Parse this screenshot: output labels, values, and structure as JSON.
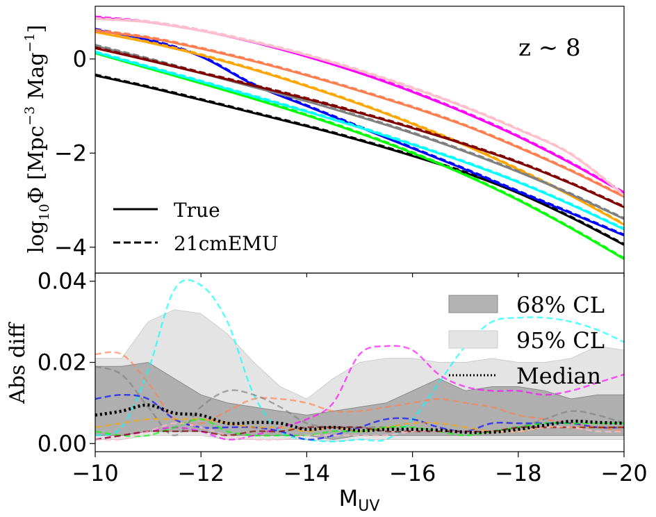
{
  "chart_data": [
    {
      "panel": "top",
      "type": "line",
      "annotation": "z ∼ 8",
      "ylabel_main": "log",
      "ylabel_sub": "10",
      "ylabel_rest": "Φ [Mpc",
      "ylabel_exp1": "−3",
      "ylabel_mid": " Mag",
      "ylabel_exp2": "−1",
      "ylabel_end": "]",
      "xlim": [
        -10,
        -20
      ],
      "ylim": [
        -4.55,
        1.12
      ],
      "yticks": [
        0,
        -2,
        -4
      ],
      "ytick_labels": [
        "0",
        "−2",
        "−4"
      ],
      "grid": false,
      "legend_position": "lower-left",
      "legend": [
        {
          "label": "True",
          "style": "solid"
        },
        {
          "label": "21cmEMU",
          "style": "dashed"
        }
      ],
      "x": [
        -10,
        -11,
        -12,
        -13,
        -14,
        -15,
        -16,
        -17,
        -18,
        -19,
        -20
      ],
      "series": [
        {
          "color": "#000000",
          "values": [
            -0.35,
            -0.6,
            -0.87,
            -1.15,
            -1.43,
            -1.73,
            -2.06,
            -2.42,
            -2.85,
            -3.37,
            -3.95
          ]
        },
        {
          "color": "#00ff00",
          "values": [
            0.12,
            -0.2,
            -0.52,
            -0.85,
            -1.2,
            -1.58,
            -2.0,
            -2.47,
            -3.0,
            -3.6,
            -4.25
          ]
        },
        {
          "color": "#0000ff",
          "values": [
            0.62,
            0.4,
            0.05,
            -0.55,
            -1.0,
            -1.45,
            -1.9,
            -2.35,
            -2.82,
            -3.28,
            -3.75
          ]
        },
        {
          "color": "#00ffff",
          "values": [
            0.14,
            -0.17,
            -0.48,
            -0.8,
            -1.12,
            -1.46,
            -1.82,
            -2.2,
            -2.62,
            -3.1,
            -3.62
          ]
        },
        {
          "color": "#ffa500",
          "values": [
            0.57,
            0.35,
            0.08,
            -0.23,
            -0.58,
            -0.96,
            -1.38,
            -1.84,
            -2.35,
            -2.91,
            -3.52
          ]
        },
        {
          "color": "#808080",
          "values": [
            0.28,
            0.0,
            -0.3,
            -0.6,
            -0.9,
            -1.23,
            -1.58,
            -1.97,
            -2.4,
            -2.88,
            -3.4
          ]
        },
        {
          "color": "#800000",
          "values": [
            0.23,
            -0.03,
            -0.3,
            -0.57,
            -0.85,
            -1.15,
            -1.47,
            -1.82,
            -2.2,
            -2.65,
            -3.15
          ]
        },
        {
          "color": "#ff7f50",
          "values": [
            0.6,
            0.45,
            0.22,
            -0.05,
            -0.35,
            -0.68,
            -1.03,
            -1.42,
            -1.88,
            -2.38,
            -2.93
          ]
        },
        {
          "color": "#ff00ff",
          "values": [
            0.88,
            0.78,
            0.6,
            0.35,
            0.05,
            -0.3,
            -0.7,
            -1.15,
            -1.65,
            -2.22,
            -2.85
          ]
        },
        {
          "color": "#ffc0cb",
          "values": [
            0.85,
            0.78,
            0.6,
            0.36,
            0.08,
            -0.25,
            -0.62,
            -1.03,
            -1.5,
            -2.03,
            -2.9
          ]
        }
      ]
    },
    {
      "panel": "bottom",
      "type": "line",
      "xlabel_main": "M",
      "xlabel_sub": "UV",
      "ylabel": "Abs diff",
      "xlim": [
        -10,
        -20
      ],
      "ylim": [
        -0.002,
        0.042
      ],
      "xticks": [
        -10,
        -12,
        -14,
        -16,
        -18,
        -20
      ],
      "xtick_labels": [
        "−10",
        "−12",
        "−14",
        "−16",
        "−18",
        "−20"
      ],
      "yticks": [
        0.0,
        0.02,
        0.04
      ],
      "ytick_labels": [
        "0.00",
        "0.02",
        "0.04"
      ],
      "grid": false,
      "legend_position": "top-right",
      "legend": [
        {
          "label": "68% CL",
          "style": "band-dark"
        },
        {
          "label": "95% CL",
          "style": "band-light"
        },
        {
          "label": "Median",
          "style": "dotted"
        }
      ],
      "x": [
        -10,
        -10.5,
        -11,
        -11.5,
        -12,
        -12.5,
        -13,
        -13.5,
        -14,
        -14.5,
        -15,
        -15.5,
        -16,
        -16.5,
        -17,
        -17.5,
        -18,
        -18.5,
        -19,
        -19.5,
        -20
      ],
      "band95_upper": [
        0.021,
        0.021,
        0.03,
        0.033,
        0.032,
        0.027,
        0.02,
        0.014,
        0.011,
        0.016,
        0.02,
        0.021,
        0.021,
        0.02,
        0.02,
        0.021,
        0.02,
        0.02,
        0.021,
        0.024,
        0.023
      ],
      "band95_lower": [
        0.001,
        0.001,
        0.002,
        0.002,
        0.002,
        0.001,
        0.001,
        0.001,
        0.001,
        0.0005,
        0.001,
        0.001,
        0.001,
        0.001,
        0.001,
        0.001,
        0.001,
        0.001,
        0.001,
        0.001,
        0.001
      ],
      "band68_upper": [
        0.019,
        0.019,
        0.02,
        0.016,
        0.012,
        0.01,
        0.009,
        0.008,
        0.007,
        0.008,
        0.009,
        0.01,
        0.013,
        0.016,
        0.013,
        0.014,
        0.014,
        0.013,
        0.011,
        0.012,
        0.012
      ],
      "band68_lower": [
        0.002,
        0.002,
        0.003,
        0.003,
        0.003,
        0.002,
        0.002,
        0.002,
        0.002,
        0.001,
        0.002,
        0.002,
        0.002,
        0.002,
        0.002,
        0.002,
        0.002,
        0.002,
        0.002,
        0.002,
        0.002
      ],
      "median": [
        0.007,
        0.008,
        0.0095,
        0.0075,
        0.007,
        0.005,
        0.0052,
        0.005,
        0.0035,
        0.004,
        0.0032,
        0.0035,
        0.0035,
        0.0033,
        0.0028,
        0.0028,
        0.0035,
        0.0045,
        0.0055,
        0.0052,
        0.005
      ],
      "series": [
        {
          "color": "#00ffff",
          "values": [
            0.002,
            0.004,
            0.018,
            0.038,
            0.039,
            0.03,
            0.012,
            0.003,
            0.001,
            0.0005,
            0.001,
            0.001,
            0.006,
            0.015,
            0.024,
            0.03,
            0.031,
            0.031,
            0.03,
            0.028,
            0.025
          ]
        },
        {
          "color": "#ff00ff",
          "values": [
            0.001,
            0.002,
            0.003,
            0.004,
            0.003,
            0.001,
            0.002,
            0.004,
            0.006,
            0.01,
            0.022,
            0.024,
            0.023,
            0.017,
            0.014,
            0.013,
            0.013,
            0.012,
            0.013,
            0.015,
            0.017
          ]
        },
        {
          "color": "#ff7f50",
          "values": [
            0.022,
            0.022,
            0.015,
            0.006,
            0.005,
            0.008,
            0.011,
            0.011,
            0.01,
            0.008,
            0.008,
            0.009,
            0.01,
            0.011,
            0.01,
            0.009,
            0.007,
            0.006,
            0.005,
            0.004,
            0.003
          ]
        },
        {
          "color": "#808080",
          "values": [
            0.019,
            0.017,
            0.009,
            0.002,
            0.009,
            0.013,
            0.012,
            0.009,
            0.005,
            0.004,
            0.004,
            0.004,
            0.003,
            0.003,
            0.003,
            0.003,
            0.004,
            0.006,
            0.008,
            0.007,
            0.005
          ]
        },
        {
          "color": "#0000ff",
          "values": [
            0.011,
            0.012,
            0.011,
            0.006,
            0.004,
            0.004,
            0.004,
            0.003,
            0.001,
            0.002,
            0.004,
            0.006,
            0.006,
            0.004,
            0.003,
            0.005,
            0.005,
            0.005,
            0.005,
            0.004,
            0.004
          ]
        },
        {
          "color": "#ffa500",
          "values": [
            0.004,
            0.005,
            0.006,
            0.006,
            0.006,
            0.005,
            0.004,
            0.004,
            0.003,
            0.004,
            0.003,
            0.004,
            0.005,
            0.005,
            0.004,
            0.003,
            0.003,
            0.004,
            0.004,
            0.004,
            0.004
          ]
        },
        {
          "color": "#00ff00",
          "values": [
            0.003,
            0.002,
            0.002,
            0.004,
            0.006,
            0.003,
            0.002,
            0.002,
            0.002,
            0.003,
            0.003,
            0.004,
            0.004,
            0.003,
            0.002,
            0.003,
            0.004,
            0.005,
            0.005,
            0.005,
            0.005
          ]
        },
        {
          "color": "#800000",
          "values": [
            0.001,
            0.002,
            0.003,
            0.003,
            0.003,
            0.002,
            0.003,
            0.003,
            0.004,
            0.004,
            0.004,
            0.003,
            0.003,
            0.003,
            0.003,
            0.003,
            0.004,
            0.004,
            0.004,
            0.004,
            0.004
          ]
        },
        {
          "color": "#ffc0cb",
          "values": [
            0.001,
            0.001,
            0.003,
            0.005,
            0.004,
            0.002,
            0.001,
            0.001,
            0.002,
            0.002,
            0.002,
            0.002,
            0.003,
            0.003,
            0.003,
            0.003,
            0.003,
            0.004,
            0.004,
            0.003,
            0.003
          ]
        }
      ]
    }
  ]
}
